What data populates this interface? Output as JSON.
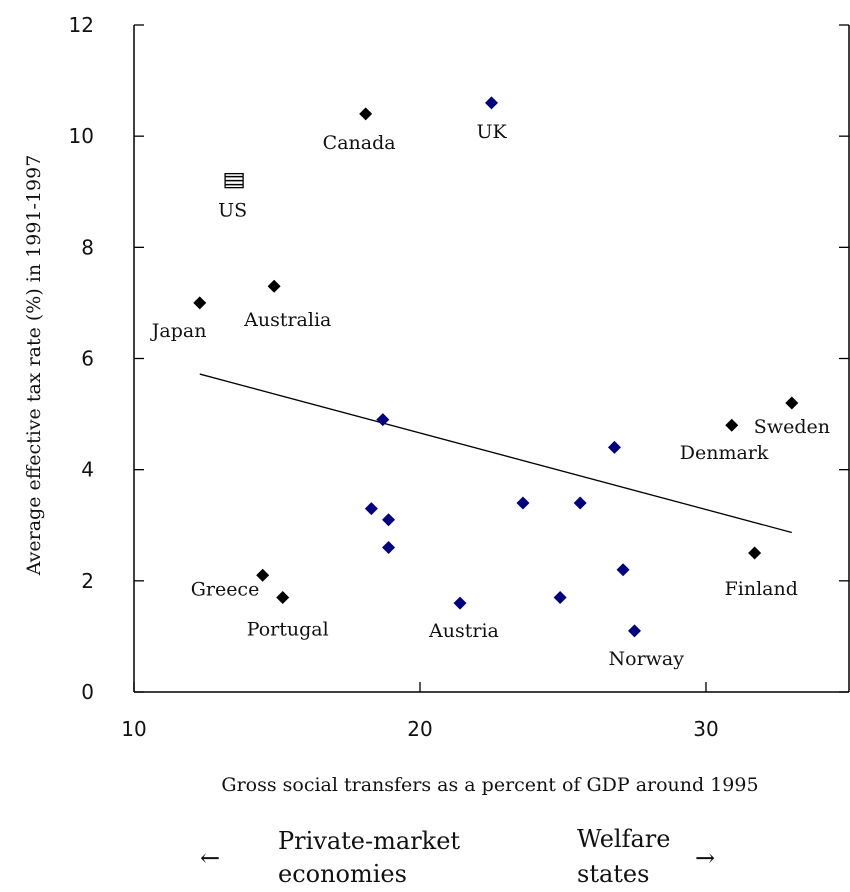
{
  "chart_data": {
    "type": "scatter",
    "title": "",
    "xlabel": "Gross social transfers as a percent of GDP around 1995",
    "ylabel": "Average effective tax rate (%) in 1991-1997",
    "xlim": [
      10,
      35
    ],
    "ylim": [
      0,
      12
    ],
    "xticks": [
      "10",
      "20",
      "30"
    ],
    "xtick_values": [
      10,
      20,
      30
    ],
    "yticks": [
      "0",
      "2",
      "4",
      "6",
      "8",
      "10",
      "12"
    ],
    "ytick_values": [
      0,
      2,
      4,
      6,
      8,
      10,
      12
    ],
    "grid": false,
    "trend_line": {
      "x": [
        12.3,
        33.0
      ],
      "y": [
        5.72,
        2.87
      ]
    },
    "colors": {
      "labeled": "#000000",
      "unlabeled": "#000080",
      "us_marker": "#000000"
    },
    "points": [
      {
        "label": "Canada",
        "x": 18.1,
        "y": 10.4,
        "color": "#000000",
        "marker": "diamond"
      },
      {
        "label": "UK",
        "x": 22.5,
        "y": 10.6,
        "color": "#000080",
        "marker": "diamond"
      },
      {
        "label": "US",
        "x": 13.5,
        "y": 9.2,
        "color": "#000000",
        "marker": "flag"
      },
      {
        "label": "Japan",
        "x": 12.3,
        "y": 7.0,
        "color": "#000000",
        "marker": "diamond"
      },
      {
        "label": "Australia",
        "x": 14.9,
        "y": 7.3,
        "color": "#000000",
        "marker": "diamond"
      },
      {
        "label": "Sweden",
        "x": 33.0,
        "y": 5.2,
        "color": "#000000",
        "marker": "diamond"
      },
      {
        "label": "Denmark",
        "x": 30.9,
        "y": 4.8,
        "color": "#000000",
        "marker": "diamond"
      },
      {
        "label": "Finland",
        "x": 31.7,
        "y": 2.5,
        "color": "#000000",
        "marker": "diamond"
      },
      {
        "label": "Greece",
        "x": 14.5,
        "y": 2.1,
        "color": "#000000",
        "marker": "diamond"
      },
      {
        "label": "Portugal",
        "x": 15.2,
        "y": 1.7,
        "color": "#000000",
        "marker": "diamond"
      },
      {
        "label": "Austria",
        "x": 21.4,
        "y": 1.6,
        "color": "#000080",
        "marker": "diamond"
      },
      {
        "label": "Norway",
        "x": 27.5,
        "y": 1.1,
        "color": "#000080",
        "marker": "diamond"
      },
      {
        "label": "",
        "x": 18.7,
        "y": 4.9,
        "color": "#000080",
        "marker": "diamond"
      },
      {
        "label": "",
        "x": 18.3,
        "y": 3.3,
        "color": "#000080",
        "marker": "diamond"
      },
      {
        "label": "",
        "x": 18.9,
        "y": 3.1,
        "color": "#000080",
        "marker": "diamond"
      },
      {
        "label": "",
        "x": 18.9,
        "y": 2.6,
        "color": "#000080",
        "marker": "diamond"
      },
      {
        "label": "",
        "x": 23.6,
        "y": 3.4,
        "color": "#000080",
        "marker": "diamond"
      },
      {
        "label": "",
        "x": 25.6,
        "y": 3.4,
        "color": "#000080",
        "marker": "diamond"
      },
      {
        "label": "",
        "x": 26.8,
        "y": 4.4,
        "color": "#000080",
        "marker": "diamond"
      },
      {
        "label": "",
        "x": 24.9,
        "y": 1.7,
        "color": "#000080",
        "marker": "diamond"
      },
      {
        "label": "",
        "x": 27.1,
        "y": 2.2,
        "color": "#000080",
        "marker": "diamond"
      }
    ]
  },
  "annotations": {
    "left_arrow_glyph": "←",
    "right_arrow_glyph": "→",
    "left_line1": "Private-market",
    "left_line2": "economies",
    "right_line1": "Welfare",
    "right_line2": "states"
  }
}
